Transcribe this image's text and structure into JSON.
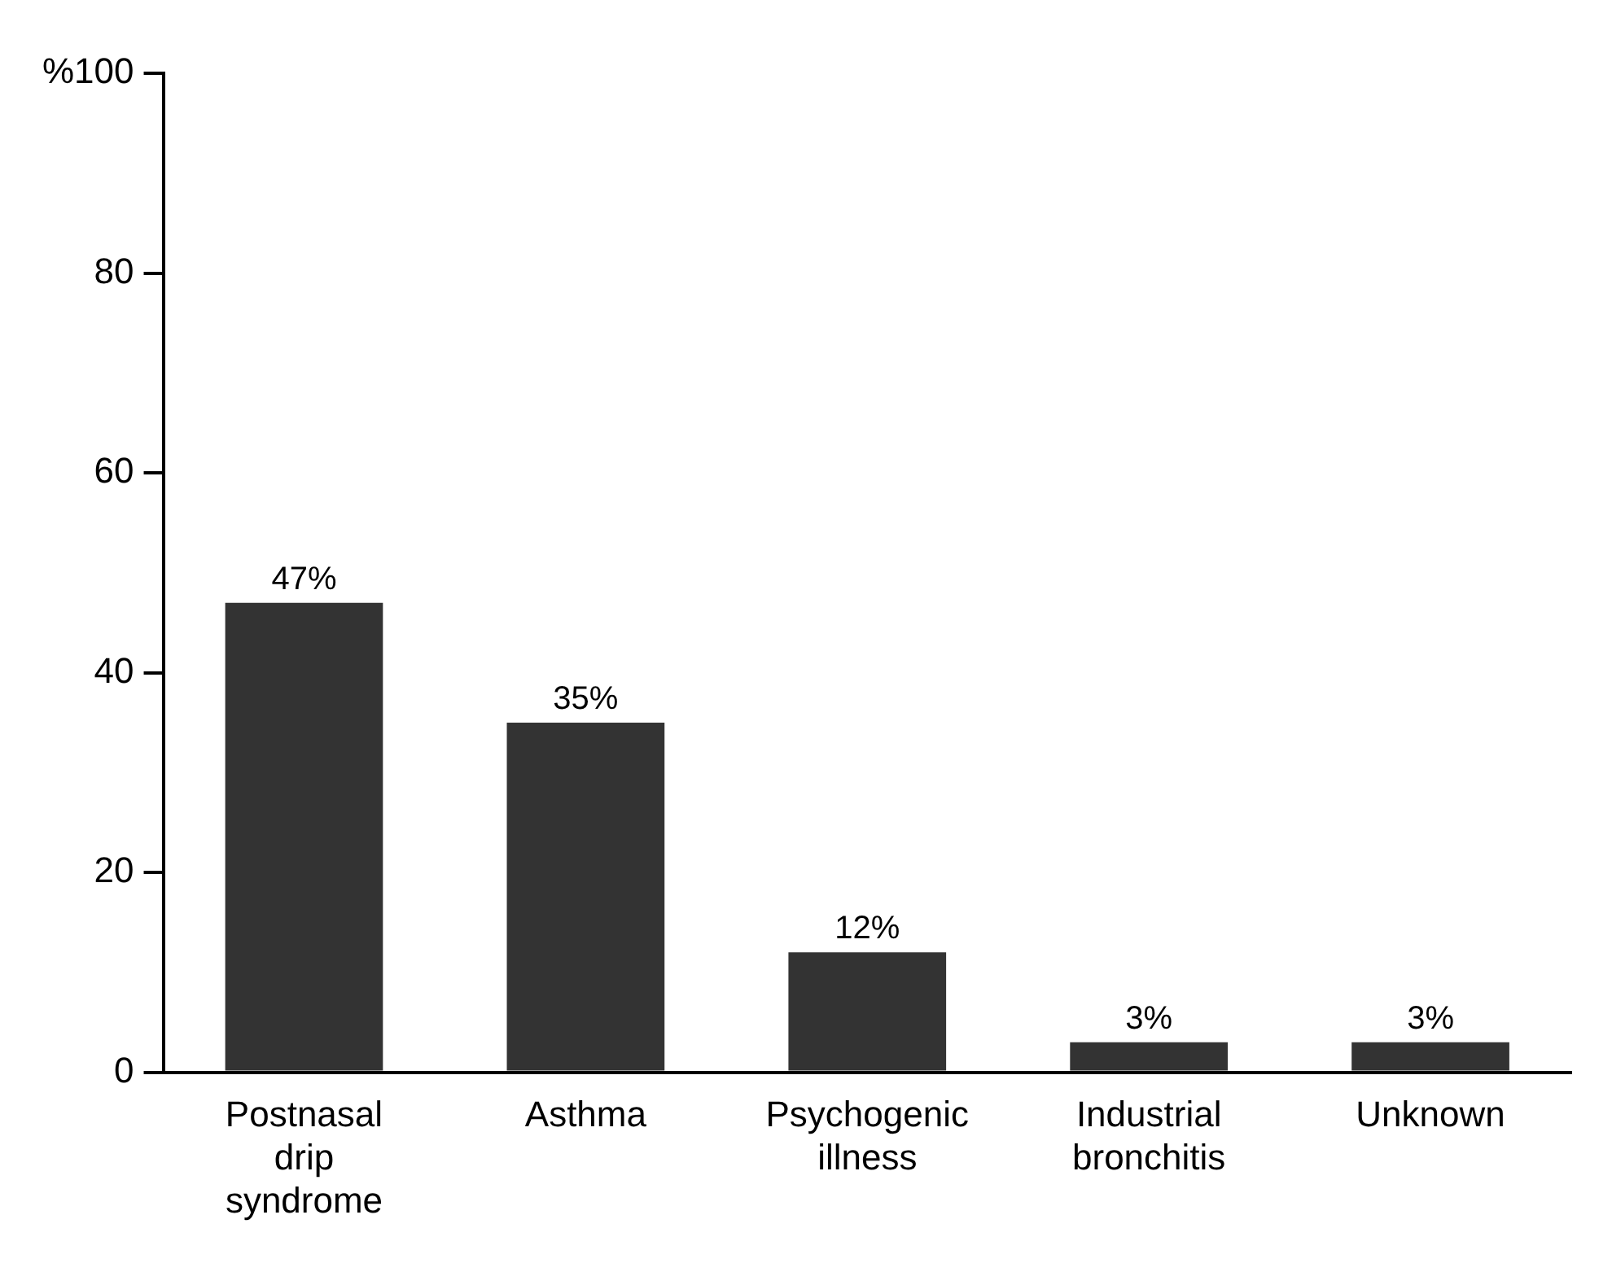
{
  "chart_data": {
    "type": "bar",
    "categories": [
      "Postnasal drip syndrome",
      "Asthma",
      "Psychogenic illness",
      "Industrial bronchitis",
      "Unknown"
    ],
    "values": [
      47,
      35,
      12,
      3,
      3
    ],
    "value_labels": [
      "47%",
      "35%",
      "12%",
      "3%",
      "3%"
    ],
    "color": "#333333",
    "ylim": [
      0,
      100
    ],
    "yticks": [
      0,
      20,
      40,
      60,
      80,
      {
        "value": 100,
        "label": "%100"
      }
    ],
    "grid": false,
    "legend": false
  }
}
